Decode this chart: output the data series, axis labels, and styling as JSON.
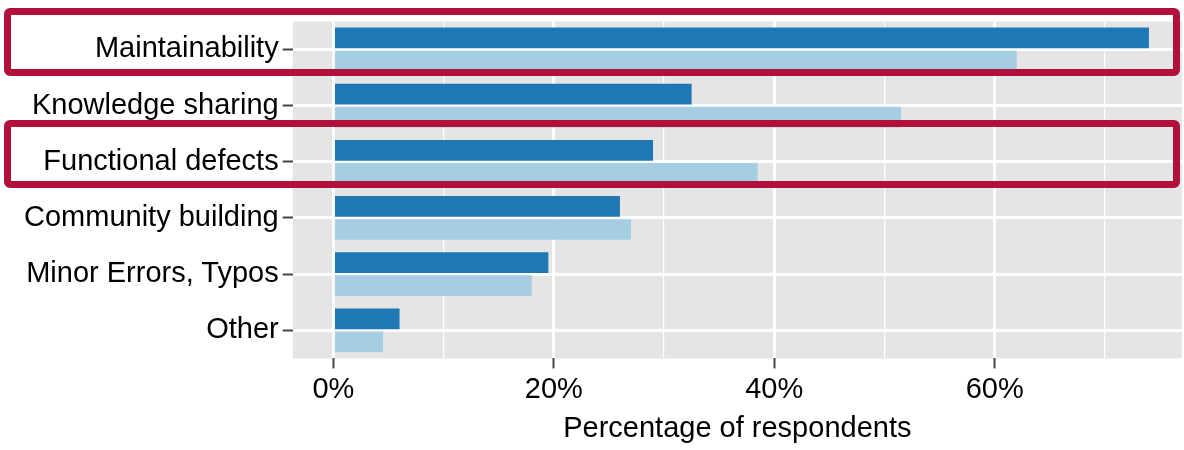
{
  "chart_data": {
    "type": "bar",
    "orientation": "horizontal",
    "xlabel": "Percentage of respondents",
    "categories": [
      "Maintainability",
      "Knowledge sharing",
      "Functional defects",
      "Community building",
      "Minor Errors, Typos",
      "Other"
    ],
    "series": [
      {
        "color": "#1f78b4",
        "values": [
          74,
          32.5,
          29,
          26,
          19.5,
          6
        ]
      },
      {
        "color": "#a6cee3",
        "values": [
          62,
          51.5,
          38.5,
          27,
          18,
          4.5
        ]
      }
    ],
    "xlim": [
      -3.7,
      77
    ],
    "xticks": [
      {
        "value": 0,
        "label": "0%"
      },
      {
        "value": 10,
        "label": null
      },
      {
        "value": 20,
        "label": "20%"
      },
      {
        "value": 30,
        "label": null
      },
      {
        "value": 40,
        "label": "40%"
      },
      {
        "value": 50,
        "label": null
      },
      {
        "value": 60,
        "label": "60%"
      },
      {
        "value": 70,
        "label": null
      }
    ],
    "grid": true,
    "legend": false
  }
}
